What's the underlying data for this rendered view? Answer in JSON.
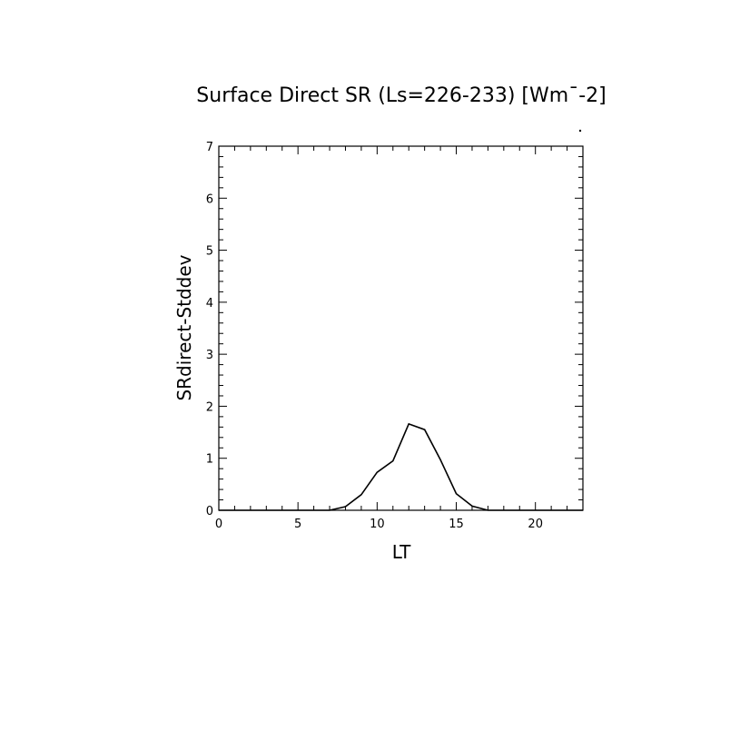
{
  "chart_data": {
    "type": "line",
    "title": "Surface Direct SR (Ls=226-233) [Wm¯-2]",
    "xlabel": "LT",
    "ylabel": "SRdirect-Stddev",
    "xlim": [
      0,
      23
    ],
    "ylim": [
      0,
      7
    ],
    "x_ticks": [
      0,
      5,
      10,
      15,
      20
    ],
    "y_ticks": [
      0,
      1,
      2,
      3,
      4,
      5,
      6,
      7
    ],
    "grid": false,
    "series": [
      {
        "x": [
          0,
          1,
          2,
          3,
          4,
          5,
          6,
          7,
          8,
          9,
          10,
          11,
          12,
          13,
          14,
          15,
          16,
          17,
          18,
          19,
          20,
          21,
          22,
          23
        ],
        "y": [
          0,
          0,
          0,
          0,
          0,
          0,
          0,
          0,
          0.07,
          0.3,
          0.73,
          0.95,
          1.66,
          1.55,
          0.97,
          0.32,
          0.08,
          0,
          0,
          0,
          0,
          0,
          0,
          0
        ]
      }
    ]
  }
}
